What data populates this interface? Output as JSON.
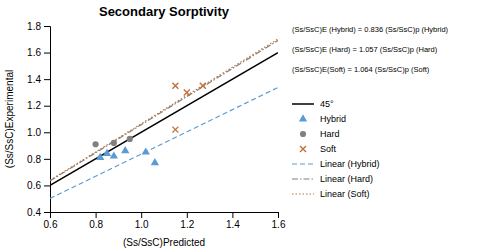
{
  "chart_data": {
    "type": "scatter",
    "title": "Secondary Sorptivity",
    "x_label": "(Ss/SsC)Predicted",
    "y_label": "(Ss/SsC)Experimental",
    "xlim": [
      0.6,
      1.6
    ],
    "ylim": [
      0.4,
      1.8
    ],
    "xticks": [
      0.6,
      0.8,
      {
        "value": 1.0,
        "label": "1.0"
      },
      1.2,
      1.4,
      1.6
    ],
    "yticks": [
      0.4,
      0.6,
      0.8,
      {
        "value": 1.0,
        "label": "1.0"
      },
      1.2,
      1.4,
      1.6,
      1.8
    ],
    "grid": false,
    "legend": "right",
    "annotations": [
      "(Ss/SsC)E (Hybrid) = 0.836 (Ss/SsC)p (Hybrid)",
      "(Ss/SsC)E (Hard) = 1.057 (Ss/SsC)p (Hard)",
      "(Ss/SsC)E(Soft) = 1.064 (Ss/SsC)p (Soft)"
    ],
    "series": [
      {
        "name": "45°",
        "type": "line",
        "color": "#000000",
        "line_style": "solid",
        "x": [
          0.6,
          1.6
        ],
        "values": [
          0.6,
          1.6
        ]
      },
      {
        "name": "Hybrid",
        "type": "scatter",
        "color": "#5b9bd5",
        "marker": "triangle",
        "x": [
          0.82,
          0.85,
          0.88,
          0.93,
          1.02,
          1.06
        ],
        "values": [
          0.81,
          0.84,
          0.82,
          0.86,
          0.85,
          0.77
        ]
      },
      {
        "name": "Hard",
        "type": "scatter",
        "color": "#808080",
        "marker": "circle",
        "x": [
          0.8,
          0.88,
          0.95
        ],
        "values": [
          0.91,
          0.92,
          0.95
        ]
      },
      {
        "name": "Soft",
        "type": "scatter",
        "color": "#c0703a",
        "marker": "x",
        "x": [
          1.15,
          1.2,
          1.27,
          1.15
        ],
        "values": [
          1.35,
          1.3,
          1.35,
          1.02
        ]
      },
      {
        "name": "Linear (Hybrid)",
        "type": "line",
        "color": "#5b9bd5",
        "line_style": "dashed",
        "x": [
          0.6,
          1.6
        ],
        "values": [
          0.5016,
          1.3376
        ]
      },
      {
        "name": "Linear (Hard)",
        "type": "line",
        "color": "#808080",
        "line_style": "dashdot",
        "x": [
          0.6,
          1.6
        ],
        "values": [
          0.6342,
          1.6912
        ]
      },
      {
        "name": "Linear (Soft)",
        "type": "line",
        "color": "#c0703a",
        "line_style": "dotted",
        "x": [
          0.6,
          1.6
        ],
        "values": [
          0.6384,
          1.7024
        ]
      }
    ]
  }
}
